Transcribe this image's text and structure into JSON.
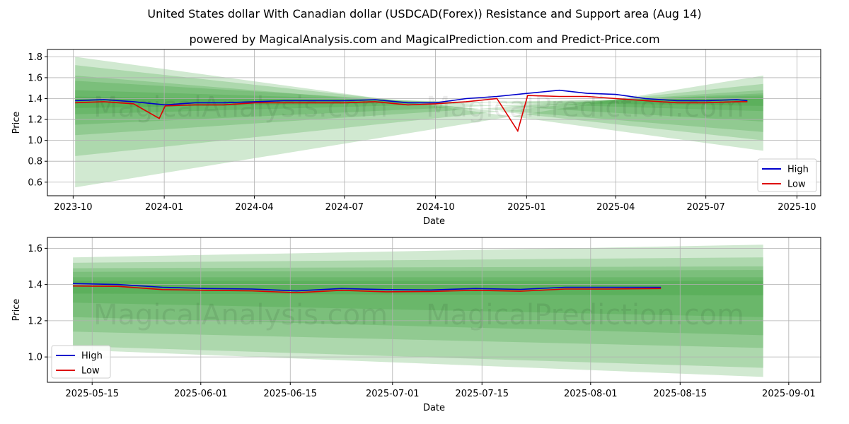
{
  "title": "United States dollar With Canadian dollar (USDCAD(Forex)) Resistance and Support area (Aug 14)",
  "subtitle": "powered by MagicalAnalysis.com and MagicalPrediction.com and Predict-Price.com",
  "watermarks": [
    "MagicalAnalysis.com",
    "MagicalPrediction.com"
  ],
  "colors": {
    "high": "#0000cc",
    "low": "#dd0000",
    "band": "#2e9a2e"
  },
  "chart_data": [
    {
      "type": "line",
      "xlabel": "Date",
      "ylabel": "Price",
      "x_ticks": [
        "2023-10",
        "2024-01",
        "2024-04",
        "2024-07",
        "2024-10",
        "2025-01",
        "2025-04",
        "2025-07",
        "2025-10"
      ],
      "y_ticks": [
        "0.6",
        "0.8",
        "1.0",
        "1.2",
        "1.4",
        "1.6",
        "1.8"
      ],
      "xlim": [
        "2023-09-05",
        "2025-10-25"
      ],
      "ylim": [
        0.47,
        1.87
      ],
      "grid": true,
      "legend": "bottom-right",
      "series": [
        {
          "name": "High",
          "x": [
            "2023-10-03",
            "2023-11-01",
            "2023-12-01",
            "2024-01-02",
            "2024-02-01",
            "2024-03-01",
            "2024-04-02",
            "2024-05-01",
            "2024-06-03",
            "2024-07-02",
            "2024-08-01",
            "2024-09-03",
            "2024-10-01",
            "2024-11-01",
            "2024-12-02",
            "2025-01-02",
            "2025-02-03",
            "2025-03-03",
            "2025-04-01",
            "2025-05-01",
            "2025-06-02",
            "2025-07-01",
            "2025-08-01",
            "2025-08-12"
          ],
          "values": [
            1.38,
            1.39,
            1.37,
            1.34,
            1.36,
            1.36,
            1.37,
            1.38,
            1.38,
            1.38,
            1.39,
            1.36,
            1.36,
            1.4,
            1.42,
            1.45,
            1.48,
            1.45,
            1.44,
            1.4,
            1.38,
            1.38,
            1.39,
            1.38
          ]
        },
        {
          "name": "Low",
          "x": [
            "2023-10-03",
            "2023-11-01",
            "2023-12-01",
            "2023-12-27",
            "2024-01-02",
            "2024-02-01",
            "2024-03-01",
            "2024-04-02",
            "2024-05-01",
            "2024-06-03",
            "2024-07-02",
            "2024-08-01",
            "2024-09-03",
            "2024-10-01",
            "2024-11-01",
            "2024-12-02",
            "2024-12-23",
            "2025-01-02",
            "2025-02-03",
            "2025-03-03",
            "2025-04-01",
            "2025-05-01",
            "2025-06-02",
            "2025-07-01",
            "2025-08-01",
            "2025-08-12"
          ],
          "values": [
            1.36,
            1.37,
            1.35,
            1.21,
            1.33,
            1.34,
            1.34,
            1.36,
            1.36,
            1.36,
            1.36,
            1.37,
            1.34,
            1.35,
            1.37,
            1.4,
            1.09,
            1.43,
            1.42,
            1.42,
            1.4,
            1.38,
            1.36,
            1.36,
            1.37,
            1.37
          ]
        }
      ],
      "support_resistance_bands": [
        {
          "start": "2023-10-03",
          "end": "2025-08-28",
          "y_start": [
            0.55,
            1.8
          ],
          "y_end": [
            1.62,
            0.9
          ]
        },
        {
          "start": "2023-10-03",
          "end": "2025-08-28",
          "y_start": [
            0.85,
            1.72
          ],
          "y_end": [
            1.54,
            1.0
          ]
        },
        {
          "start": "2023-10-03",
          "end": "2025-08-28",
          "y_start": [
            1.05,
            1.62
          ],
          "y_end": [
            1.48,
            1.08
          ]
        },
        {
          "start": "2023-10-03",
          "end": "2025-08-28",
          "y_start": [
            1.15,
            1.57
          ],
          "y_end": [
            1.45,
            1.18
          ]
        },
        {
          "start": "2023-10-03",
          "end": "2025-08-28",
          "y_start": [
            1.25,
            1.48
          ],
          "y_end": [
            1.43,
            1.28
          ]
        },
        {
          "start": "2023-10-03",
          "end": "2025-08-28",
          "y_start": [
            1.31,
            1.42
          ],
          "y_end": [
            1.41,
            1.33
          ]
        }
      ]
    },
    {
      "type": "line",
      "xlabel": "Date",
      "ylabel": "Price",
      "x_ticks": [
        "2025-05-15",
        "2025-06-01",
        "2025-06-15",
        "2025-07-01",
        "2025-07-15",
        "2025-08-01",
        "2025-08-15",
        "2025-09-01"
      ],
      "y_ticks": [
        "1.0",
        "1.2",
        "1.4",
        "1.6"
      ],
      "xlim": [
        "2025-05-08",
        "2025-09-06"
      ],
      "ylim": [
        0.86,
        1.66
      ],
      "grid": true,
      "legend": "bottom-left",
      "series": [
        {
          "name": "High",
          "x": [
            "2025-05-12",
            "2025-05-19",
            "2025-05-26",
            "2025-06-02",
            "2025-06-09",
            "2025-06-16",
            "2025-06-23",
            "2025-06-30",
            "2025-07-07",
            "2025-07-14",
            "2025-07-21",
            "2025-07-28",
            "2025-08-04",
            "2025-08-12"
          ],
          "values": [
            1.405,
            1.4,
            1.385,
            1.378,
            1.375,
            1.365,
            1.378,
            1.372,
            1.37,
            1.378,
            1.373,
            1.385,
            1.385,
            1.385
          ]
        },
        {
          "name": "Low",
          "x": [
            "2025-05-12",
            "2025-05-19",
            "2025-05-26",
            "2025-06-02",
            "2025-06-09",
            "2025-06-16",
            "2025-06-23",
            "2025-06-30",
            "2025-07-07",
            "2025-07-14",
            "2025-07-21",
            "2025-07-28",
            "2025-08-04",
            "2025-08-12"
          ],
          "values": [
            1.392,
            1.39,
            1.372,
            1.368,
            1.365,
            1.355,
            1.368,
            1.36,
            1.362,
            1.368,
            1.363,
            1.375,
            1.375,
            1.378
          ]
        }
      ],
      "support_resistance_bands": [
        {
          "start": "2025-05-12",
          "end": "2025-08-28",
          "y_start": [
            1.04,
            1.55
          ],
          "y_end": [
            0.89,
            1.62
          ]
        },
        {
          "start": "2025-05-12",
          "end": "2025-08-28",
          "y_start": [
            1.06,
            1.52
          ],
          "y_end": [
            0.94,
            1.55
          ]
        },
        {
          "start": "2025-05-12",
          "end": "2025-08-28",
          "y_start": [
            1.14,
            1.49
          ],
          "y_end": [
            1.05,
            1.5
          ]
        },
        {
          "start": "2025-05-12",
          "end": "2025-08-28",
          "y_start": [
            1.22,
            1.47
          ],
          "y_end": [
            1.12,
            1.48
          ]
        },
        {
          "start": "2025-05-12",
          "end": "2025-08-28",
          "y_start": [
            1.3,
            1.44
          ],
          "y_end": [
            1.22,
            1.44
          ]
        },
        {
          "start": "2025-05-12",
          "end": "2025-08-28",
          "y_start": [
            1.35,
            1.42
          ],
          "y_end": [
            1.34,
            1.42
          ]
        }
      ]
    }
  ]
}
